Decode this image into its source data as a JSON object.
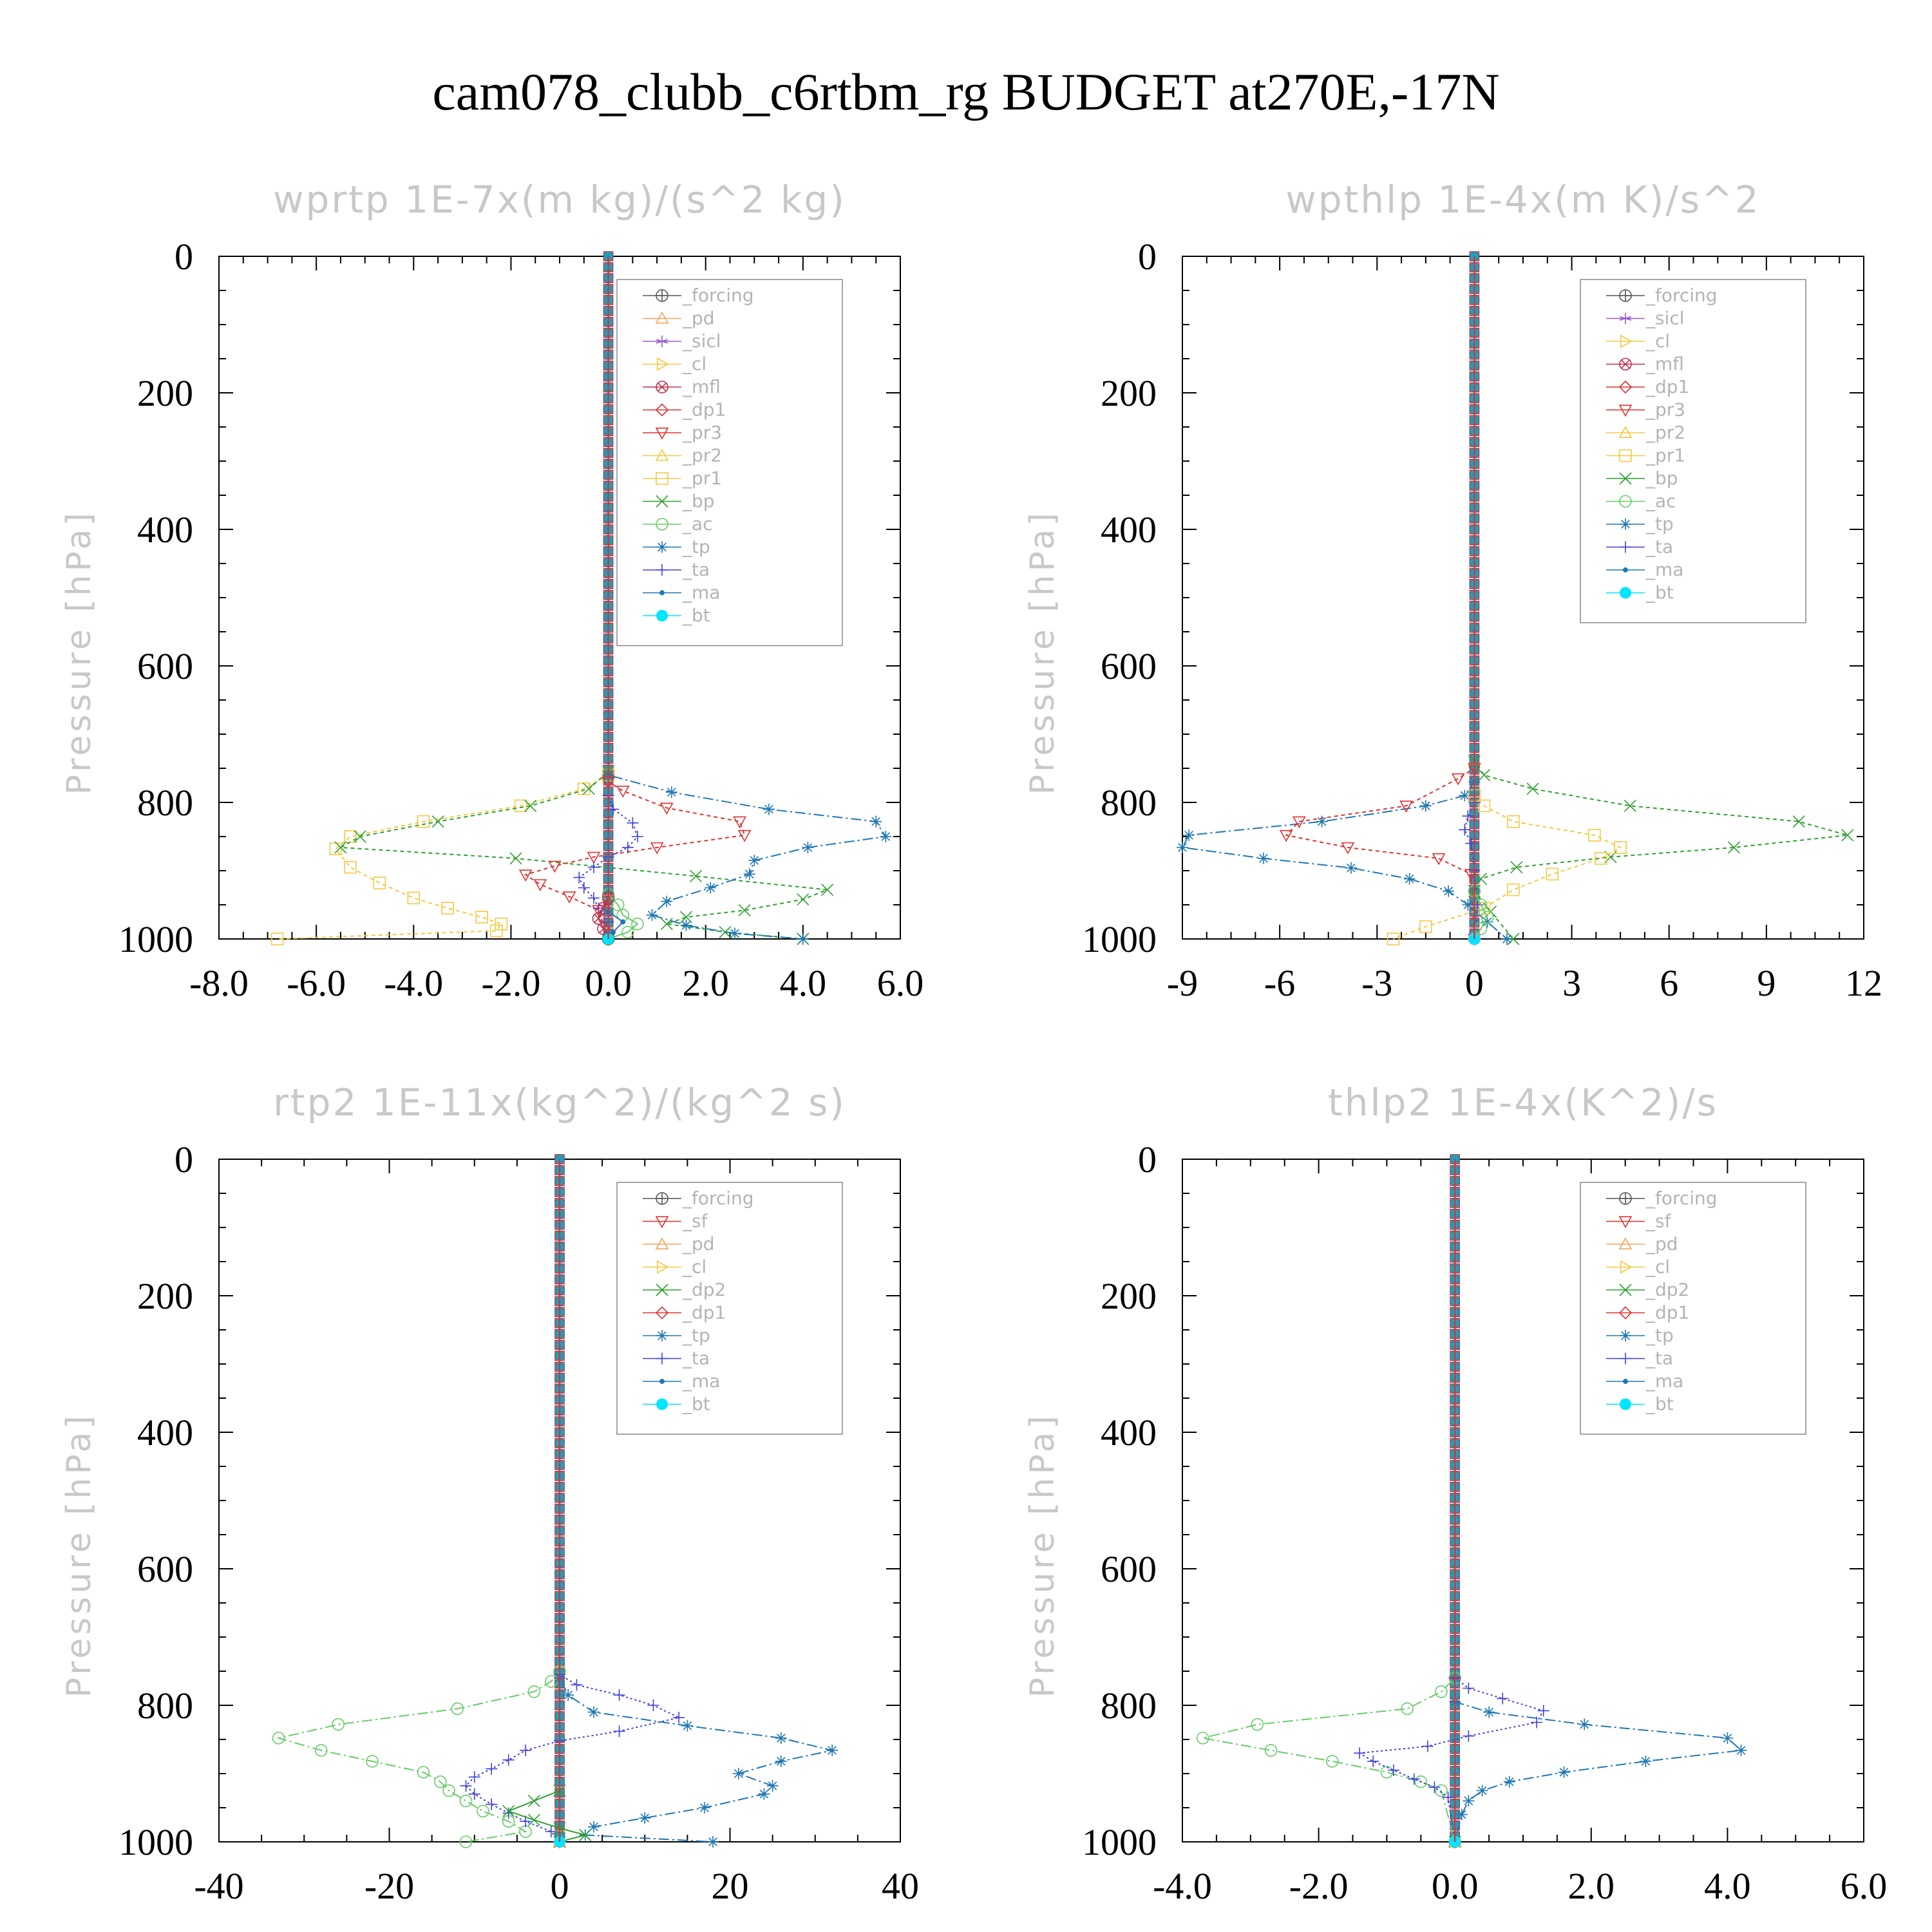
{
  "figure_title": "cam078_clubb_c6rtbm_rg  BUDGET at270E,-17N",
  "chart_data": [
    {
      "type": "line",
      "title": "wprtp   1E-7x(m kg)/(s^2 kg)",
      "ylabel": "Pressure [hPa]",
      "xlim": [
        -8,
        6
      ],
      "ylim": [
        1000,
        0
      ],
      "xticks": [
        -8,
        -6,
        -4,
        -2,
        0,
        2,
        4,
        6
      ],
      "xtick_labels": [
        "-8.0",
        "-6.0",
        "-4.0",
        "-2.0",
        "0.0",
        "2.0",
        "4.0",
        "6.0"
      ],
      "yticks": [
        0,
        200,
        400,
        600,
        800,
        1000
      ],
      "ytick_labels": [
        "0",
        "200",
        "400",
        "600",
        "800",
        "1000"
      ],
      "legend": {
        "position": "top-right",
        "entries": [
          "_forcing",
          "_pd",
          "_sicl",
          "_cl",
          "_mfl",
          "_dp1",
          "_pr3",
          "_pr2",
          "_pr1",
          "_bp",
          "_ac",
          "_tp",
          "_ta",
          "_ma",
          "_bt"
        ]
      },
      "series": [
        {
          "name": "_pr1",
          "color": "#f5c842",
          "marker": "square",
          "dash": "6,5",
          "x": [
            0,
            0,
            -0.5,
            -1.8,
            -3.8,
            -5.3,
            -5.6,
            -5.3,
            -4.7,
            -4.0,
            -3.3,
            -2.6,
            -2.2,
            -2.3,
            -6.8
          ],
          "y": [
            0,
            760,
            780,
            805,
            828,
            850,
            868,
            895,
            918,
            940,
            955,
            968,
            978,
            988,
            1000
          ]
        },
        {
          "name": "_bp",
          "color": "#2ea02e",
          "marker": "x",
          "dash": "6,5",
          "x": [
            0,
            0,
            -0.4,
            -1.6,
            -3.5,
            -5.1,
            -5.5,
            -1.9,
            1.8,
            4.5,
            4.0,
            2.8,
            1.6,
            1.2,
            2.4,
            4.0
          ],
          "y": [
            0,
            755,
            780,
            805,
            828,
            850,
            866,
            882,
            908,
            928,
            942,
            958,
            968,
            978,
            990,
            1000
          ]
        },
        {
          "name": "_tp",
          "color": "#1f77b4",
          "marker": "asterisk",
          "dash": "16,5,3,5",
          "x": [
            0,
            0,
            1.3,
            3.3,
            5.5,
            5.7,
            4.1,
            3.0,
            2.9,
            2.1,
            1.2,
            0.9,
            1.6,
            2.6,
            4.0
          ],
          "y": [
            0,
            760,
            785,
            810,
            828,
            850,
            866,
            885,
            905,
            925,
            945,
            965,
            980,
            992,
            1000
          ]
        },
        {
          "name": "_pr3",
          "color": "#e03030",
          "marker": "triangle-down",
          "dash": "6,5",
          "x": [
            0,
            0,
            0.3,
            1.2,
            2.7,
            2.8,
            1.0,
            -0.3,
            -1.1,
            -1.7,
            -1.4,
            -0.8,
            -0.2,
            0
          ],
          "y": [
            0,
            770,
            783,
            808,
            828,
            848,
            866,
            880,
            893,
            906,
            920,
            938,
            958,
            1000
          ]
        },
        {
          "name": "_ta",
          "color": "#4040e0",
          "marker": "plus",
          "dash": "3,4",
          "x": [
            0,
            0,
            0.1,
            0.5,
            0.6,
            0.4,
            0,
            -0.3,
            -0.6,
            -0.5,
            -0.3,
            -0.2,
            0,
            0
          ],
          "y": [
            0,
            790,
            810,
            830,
            850,
            866,
            880,
            895,
            910,
            925,
            940,
            955,
            975,
            1000
          ]
        },
        {
          "name": "_ac",
          "color": "#66cc66",
          "marker": "circle",
          "dash": "",
          "x": [
            0,
            0,
            0.2,
            0.3,
            0.6,
            0.4,
            0
          ],
          "y": [
            0,
            935,
            950,
            965,
            978,
            990,
            1000
          ]
        },
        {
          "name": "_mfl",
          "color": "#c0304a",
          "marker": "circle-x",
          "dash": "",
          "x": [
            0,
            0,
            -0.1,
            -0.2,
            -0.1,
            0
          ],
          "y": [
            0,
            940,
            955,
            970,
            985,
            1000
          ]
        },
        {
          "name": "_ma",
          "color": "#1f77b4",
          "marker": "dot",
          "dash": "",
          "x": [
            0,
            0,
            0.3,
            0.1,
            0
          ],
          "y": [
            0,
            960,
            975,
            990,
            1000
          ]
        },
        {
          "name": "_forcing",
          "color": "#555555",
          "marker": "circle-plus",
          "dash": "",
          "x": [
            0,
            0
          ],
          "y": [
            0,
            1000
          ]
        },
        {
          "name": "_bt",
          "color": "#00e5ff",
          "marker": "filled-circle",
          "dash": "",
          "x": [
            0,
            0
          ],
          "y": [
            0,
            1000
          ]
        }
      ]
    },
    {
      "type": "line",
      "title": "wpthlp   1E-4x(m K)/s^2",
      "ylabel": "Pressure [hPa]",
      "xlim": [
        -9,
        12
      ],
      "ylim": [
        1000,
        0
      ],
      "xticks": [
        -9,
        -6,
        -3,
        0,
        3,
        6,
        9,
        12
      ],
      "xtick_labels": [
        "-9",
        "-6",
        "-3",
        "0",
        "3",
        "6",
        "9",
        "12"
      ],
      "yticks": [
        0,
        200,
        400,
        600,
        800,
        1000
      ],
      "ytick_labels": [
        "0",
        "200",
        "400",
        "600",
        "800",
        "1000"
      ],
      "legend": {
        "position": "top-right",
        "entries": [
          "_forcing",
          "_sicl",
          "_cl",
          "_mfl",
          "_dp1",
          "_pr3",
          "_pr2",
          "_pr1",
          "_bp",
          "_ac",
          "_tp",
          "_ta",
          "_ma",
          "_bt"
        ]
      },
      "series": [
        {
          "name": "_bp",
          "color": "#2ea02e",
          "marker": "x",
          "dash": "6,5",
          "x": [
            0,
            0,
            0.3,
            1.8,
            4.8,
            10.0,
            11.5,
            8.0,
            4.2,
            1.3,
            0.2,
            0,
            0.5,
            1.2
          ],
          "y": [
            0,
            740,
            760,
            780,
            805,
            828,
            848,
            866,
            880,
            895,
            912,
            930,
            960,
            1000
          ]
        },
        {
          "name": "_tp",
          "color": "#1f77b4",
          "marker": "asterisk",
          "dash": "16,5,3,5",
          "x": [
            0,
            0,
            -0.3,
            -1.5,
            -4.7,
            -8.8,
            -9.0,
            -6.5,
            -3.8,
            -2.0,
            -0.8,
            -0.2,
            0.4,
            1.0
          ],
          "y": [
            0,
            770,
            790,
            805,
            828,
            848,
            866,
            882,
            896,
            912,
            930,
            950,
            975,
            1000
          ]
        },
        {
          "name": "_pr3",
          "color": "#e03030",
          "marker": "triangle-down",
          "dash": "6,5",
          "x": [
            0,
            0,
            -0.5,
            -2.1,
            -5.4,
            -5.8,
            -3.9,
            -1.1,
            -0.1,
            0
          ],
          "y": [
            0,
            750,
            765,
            805,
            828,
            848,
            866,
            882,
            905,
            1000
          ]
        },
        {
          "name": "_pr1",
          "color": "#f5c842",
          "marker": "square",
          "dash": "6,5",
          "x": [
            0,
            0,
            0.3,
            1.2,
            3.7,
            4.5,
            3.9,
            2.4,
            1.2,
            0.3,
            -1.5,
            -2.5
          ],
          "y": [
            0,
            790,
            805,
            828,
            848,
            866,
            882,
            905,
            928,
            955,
            982,
            1000
          ]
        },
        {
          "name": "_ta",
          "color": "#4040e0",
          "marker": "plus",
          "dash": "3,4",
          "x": [
            0,
            0,
            -0.2,
            -0.3,
            -0.1,
            0,
            0.1,
            0
          ],
          "y": [
            0,
            800,
            820,
            840,
            860,
            900,
            950,
            1000
          ]
        },
        {
          "name": "_ac",
          "color": "#66cc66",
          "marker": "circle",
          "dash": "",
          "x": [
            0,
            0,
            0.2,
            0.4,
            0.2,
            0
          ],
          "y": [
            0,
            930,
            950,
            968,
            985,
            1000
          ]
        },
        {
          "name": "_forcing",
          "color": "#d9a6e8",
          "marker": "circle",
          "dash": "",
          "x": [
            0,
            0
          ],
          "y": [
            0,
            1000
          ]
        },
        {
          "name": "_bt",
          "color": "#00e5ff",
          "marker": "filled-circle",
          "dash": "",
          "x": [
            0,
            0
          ],
          "y": [
            0,
            1000
          ]
        }
      ]
    },
    {
      "type": "line",
      "title": "rtp2   1E-11x(kg^2)/(kg^2 s)",
      "ylabel": "Pressure [hPa]",
      "xlim": [
        -40,
        40
      ],
      "ylim": [
        1000,
        0
      ],
      "xticks": [
        -40,
        -20,
        0,
        20,
        40
      ],
      "xtick_labels": [
        "-40",
        "-20",
        "0",
        "20",
        "40"
      ],
      "yticks": [
        0,
        200,
        400,
        600,
        800,
        1000
      ],
      "ytick_labels": [
        "0",
        "200",
        "400",
        "600",
        "800",
        "1000"
      ],
      "legend": {
        "position": "top-right",
        "entries": [
          "_forcing",
          "_sf",
          "_pd",
          "_cl",
          "_dp2",
          "_dp1",
          "_tp",
          "_ta",
          "_ma",
          "_bt"
        ]
      },
      "series": [
        {
          "name": "_dp1",
          "color": "#66cc66",
          "marker": "circle",
          "dash": "16,5,3,5",
          "x": [
            0,
            0,
            -1,
            -3,
            -12,
            -26,
            -33,
            -28,
            -22,
            -16,
            -14,
            -13,
            -11,
            -9,
            -6,
            -4,
            -11
          ],
          "y": [
            0,
            750,
            765,
            780,
            805,
            828,
            848,
            866,
            882,
            898,
            912,
            925,
            940,
            955,
            970,
            985,
            1000
          ]
        },
        {
          "name": "_tp",
          "color": "#1f77b4",
          "marker": "asterisk",
          "dash": "16,5,3,5",
          "x": [
            0,
            0,
            1,
            4,
            15,
            26,
            32,
            26,
            21,
            25,
            24,
            17,
            10,
            4,
            3,
            18
          ],
          "y": [
            0,
            760,
            785,
            810,
            830,
            848,
            866,
            882,
            900,
            918,
            930,
            950,
            965,
            978,
            990,
            1000
          ]
        },
        {
          "name": "_ta",
          "color": "#4040e0",
          "marker": "plus",
          "dash": "3,4",
          "x": [
            0,
            0,
            2,
            7,
            11,
            14,
            7,
            0,
            -4,
            -6,
            -8,
            -10,
            -11,
            -10,
            -8,
            -6,
            -4,
            -1,
            0
          ],
          "y": [
            0,
            755,
            770,
            785,
            800,
            818,
            838,
            852,
            866,
            880,
            893,
            905,
            918,
            930,
            945,
            958,
            970,
            985,
            1000
          ]
        },
        {
          "name": "_dp2",
          "color": "#2ea02e",
          "marker": "x",
          "dash": "",
          "x": [
            0,
            0,
            -3,
            -6,
            -3,
            0,
            3,
            0
          ],
          "y": [
            0,
            925,
            940,
            955,
            968,
            980,
            990,
            1000
          ]
        },
        {
          "name": "_pd",
          "color": "#f5a35a",
          "marker": "triangle-up",
          "dash": "",
          "x": [
            0,
            0
          ],
          "y": [
            0,
            1000
          ]
        },
        {
          "name": "_forcing",
          "color": "#e03030",
          "marker": "diamond",
          "dash": "",
          "x": [
            0,
            0
          ],
          "y": [
            0,
            1000
          ]
        },
        {
          "name": "_bt",
          "color": "#00e5ff",
          "marker": "filled-circle",
          "dash": "",
          "x": [
            0,
            0
          ],
          "y": [
            0,
            1000
          ]
        }
      ]
    },
    {
      "type": "line",
      "title": "thlp2   1E-4x(K^2)/s",
      "ylabel": "Pressure [hPa]",
      "xlim": [
        -4,
        6
      ],
      "ylim": [
        1000,
        0
      ],
      "xticks": [
        -4,
        -2,
        0,
        2,
        4,
        6
      ],
      "xtick_labels": [
        "-4.0",
        "-2.0",
        "0.0",
        "2.0",
        "4.0",
        "6.0"
      ],
      "yticks": [
        0,
        200,
        400,
        600,
        800,
        1000
      ],
      "ytick_labels": [
        "0",
        "200",
        "400",
        "600",
        "800",
        "1000"
      ],
      "legend": {
        "position": "top-right",
        "entries": [
          "_forcing",
          "_sf",
          "_pd",
          "_cl",
          "_dp2",
          "_dp1",
          "_tp",
          "_ta",
          "_ma",
          "_bt"
        ]
      },
      "series": [
        {
          "name": "_dp1",
          "color": "#66cc66",
          "marker": "circle",
          "dash": "16,5,3,5",
          "x": [
            0,
            0,
            -0.2,
            -0.7,
            -2.9,
            -3.7,
            -2.7,
            -1.8,
            -1.0,
            -0.5,
            -0.2,
            0
          ],
          "y": [
            0,
            760,
            780,
            805,
            828,
            848,
            866,
            882,
            898,
            912,
            925,
            1000
          ]
        },
        {
          "name": "_tp",
          "color": "#1f77b4",
          "marker": "asterisk",
          "dash": "16,5,3,5",
          "x": [
            0,
            0,
            0.5,
            1.9,
            4.0,
            4.2,
            2.8,
            1.6,
            0.8,
            0.4,
            0.2,
            0.1,
            0
          ],
          "y": [
            0,
            795,
            810,
            828,
            848,
            866,
            882,
            898,
            912,
            925,
            940,
            960,
            1000
          ]
        },
        {
          "name": "_ta",
          "color": "#4040e0",
          "marker": "plus",
          "dash": "3,4",
          "x": [
            0,
            0,
            0.2,
            0.7,
            1.3,
            1.2,
            0.2,
            -0.4,
            -1.4,
            -1.2,
            -0.9,
            -0.6,
            -0.3,
            -0.1,
            0
          ],
          "y": [
            0,
            760,
            775,
            790,
            808,
            825,
            845,
            860,
            870,
            882,
            895,
            908,
            920,
            935,
            1000
          ]
        },
        {
          "name": "_dp2",
          "color": "#2ea02e",
          "marker": "x",
          "dash": "",
          "x": [
            0,
            0
          ],
          "y": [
            0,
            1000
          ]
        },
        {
          "name": "_pd",
          "color": "#f5a35a",
          "marker": "triangle-up",
          "dash": "",
          "x": [
            0,
            0
          ],
          "y": [
            0,
            1000
          ]
        },
        {
          "name": "_forcing",
          "color": "#e03030",
          "marker": "diamond",
          "dash": "",
          "x": [
            0,
            0
          ],
          "y": [
            0,
            1000
          ]
        },
        {
          "name": "_bt",
          "color": "#00e5ff",
          "marker": "filled-circle",
          "dash": "",
          "x": [
            0,
            0
          ],
          "y": [
            0,
            1000
          ]
        }
      ]
    }
  ]
}
